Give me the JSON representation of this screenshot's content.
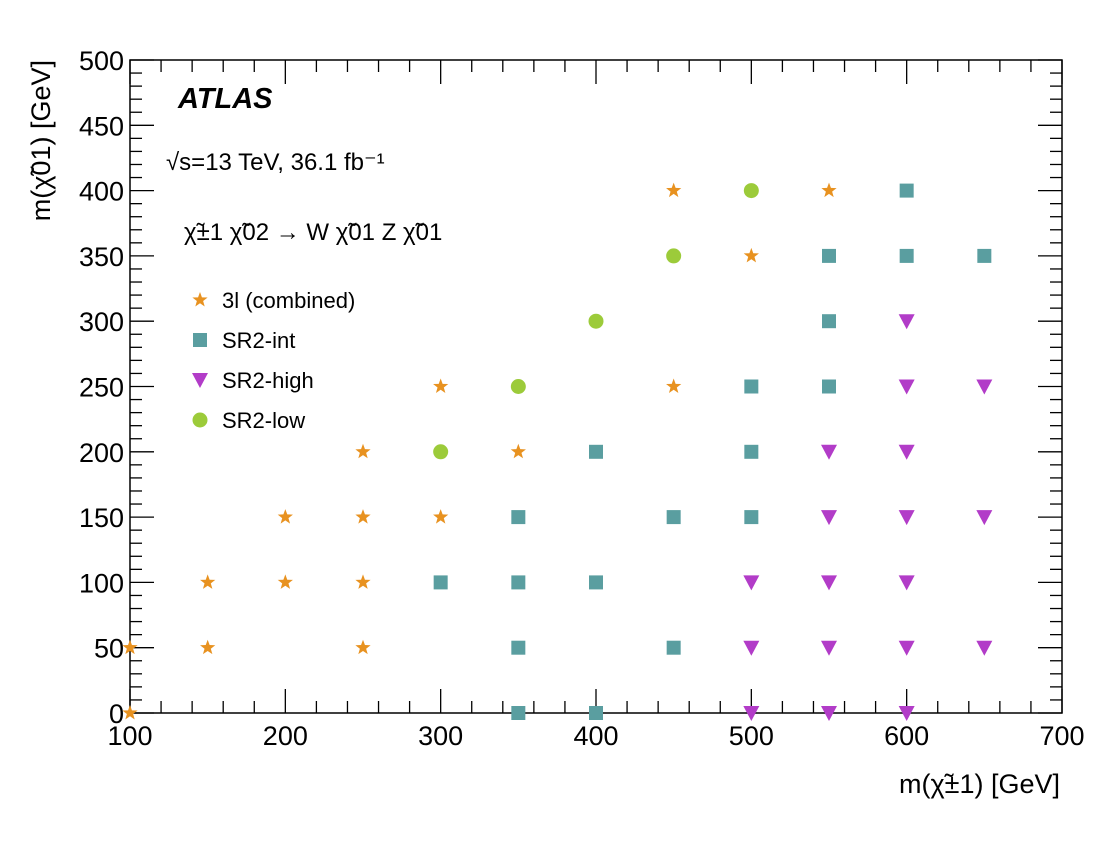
{
  "chart_data": {
    "type": "scatter",
    "title": "",
    "xlabel": "m(χ̃±1) [GeV]",
    "ylabel": "m(χ̃01) [GeV]",
    "xlim": [
      100,
      700
    ],
    "ylim": [
      0,
      500
    ],
    "x_ticks": [
      100,
      200,
      300,
      400,
      500,
      600,
      700
    ],
    "y_ticks": [
      0,
      50,
      100,
      150,
      200,
      250,
      300,
      350,
      400,
      450,
      500
    ],
    "grid": false,
    "legend_position": "upper-left",
    "annotations": {
      "experiment": "ATLAS",
      "energy_lumi": "√s=13 TeV, 36.1 fb⁻¹",
      "process": "χ̃±1 χ̃02 → W χ̃01 Z χ̃01"
    },
    "series": [
      {
        "name": "3l (combined)",
        "marker": "star",
        "color": "#e89220",
        "points": [
          [
            100,
            0
          ],
          [
            100,
            50
          ],
          [
            150,
            50
          ],
          [
            250,
            50
          ],
          [
            150,
            100
          ],
          [
            200,
            100
          ],
          [
            250,
            100
          ],
          [
            200,
            150
          ],
          [
            250,
            150
          ],
          [
            300,
            150
          ],
          [
            250,
            200
          ],
          [
            350,
            200
          ],
          [
            300,
            250
          ],
          [
            450,
            250
          ],
          [
            450,
            400
          ],
          [
            550,
            400
          ],
          [
            500,
            350
          ]
        ]
      },
      {
        "name": "SR2-int",
        "marker": "square",
        "color": "#5a9ea0",
        "points": [
          [
            350,
            0
          ],
          [
            400,
            0
          ],
          [
            350,
            50
          ],
          [
            450,
            50
          ],
          [
            300,
            100
          ],
          [
            350,
            100
          ],
          [
            400,
            100
          ],
          [
            350,
            150
          ],
          [
            450,
            150
          ],
          [
            500,
            150
          ],
          [
            400,
            200
          ],
          [
            500,
            200
          ],
          [
            500,
            250
          ],
          [
            550,
            250
          ],
          [
            550,
            300
          ],
          [
            550,
            350
          ],
          [
            600,
            350
          ],
          [
            650,
            350
          ],
          [
            600,
            400
          ]
        ]
      },
      {
        "name": "SR2-high",
        "marker": "triangle-down",
        "color": "#b23cc8",
        "points": [
          [
            500,
            0
          ],
          [
            550,
            0
          ],
          [
            600,
            0
          ],
          [
            500,
            50
          ],
          [
            550,
            50
          ],
          [
            600,
            50
          ],
          [
            650,
            50
          ],
          [
            500,
            100
          ],
          [
            550,
            100
          ],
          [
            600,
            100
          ],
          [
            550,
            150
          ],
          [
            600,
            150
          ],
          [
            650,
            150
          ],
          [
            550,
            200
          ],
          [
            600,
            200
          ],
          [
            600,
            250
          ],
          [
            650,
            250
          ],
          [
            600,
            300
          ]
        ]
      },
      {
        "name": "SR2-low",
        "marker": "circle",
        "color": "#9ccb3a",
        "points": [
          [
            300,
            200
          ],
          [
            350,
            250
          ],
          [
            400,
            300
          ],
          [
            450,
            350
          ],
          [
            500,
            400
          ]
        ]
      }
    ]
  }
}
